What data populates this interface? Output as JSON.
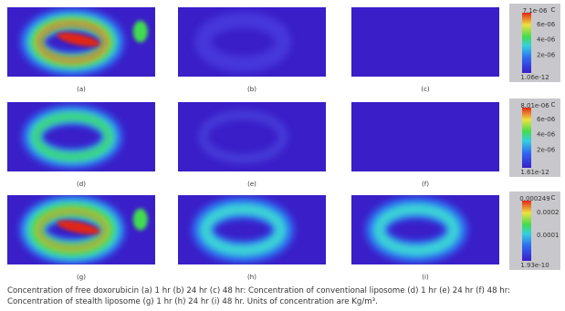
{
  "panels": [
    {
      "label": "(a)"
    },
    {
      "label": "(b)"
    },
    {
      "label": "(c)"
    },
    {
      "label": "(d)"
    },
    {
      "label": "(e)"
    },
    {
      "label": "(f)"
    },
    {
      "label": "(g)"
    },
    {
      "label": "(h)"
    },
    {
      "label": "(i)"
    }
  ],
  "colorbars": [
    {
      "title": "C",
      "max": "7.1e-06",
      "ticks": [
        "6e-06",
        "4e-06",
        "2e-06"
      ],
      "min": "1.06e-12"
    },
    {
      "title": "C",
      "max": "8.01e-06",
      "ticks": [
        "6e-06",
        "4e-06",
        "2e-06"
      ],
      "min": "1.61e-12"
    },
    {
      "title": "C",
      "max": "0.000249",
      "ticks": [
        "0.0002",
        "0.0001"
      ],
      "min": "1.93e-10"
    }
  ],
  "caption": "Concentration of free doxorubicin (a) 1 hr (b) 24 hr (c) 48 hr: Concentration of conventional liposome (d) 1 hr (e) 24 hr (f) 48 hr: Concentration of stealth liposome (g) 1 hr (h) 24 hr (i) 48 hr.  Units of concentration are Kg/m³."
}
